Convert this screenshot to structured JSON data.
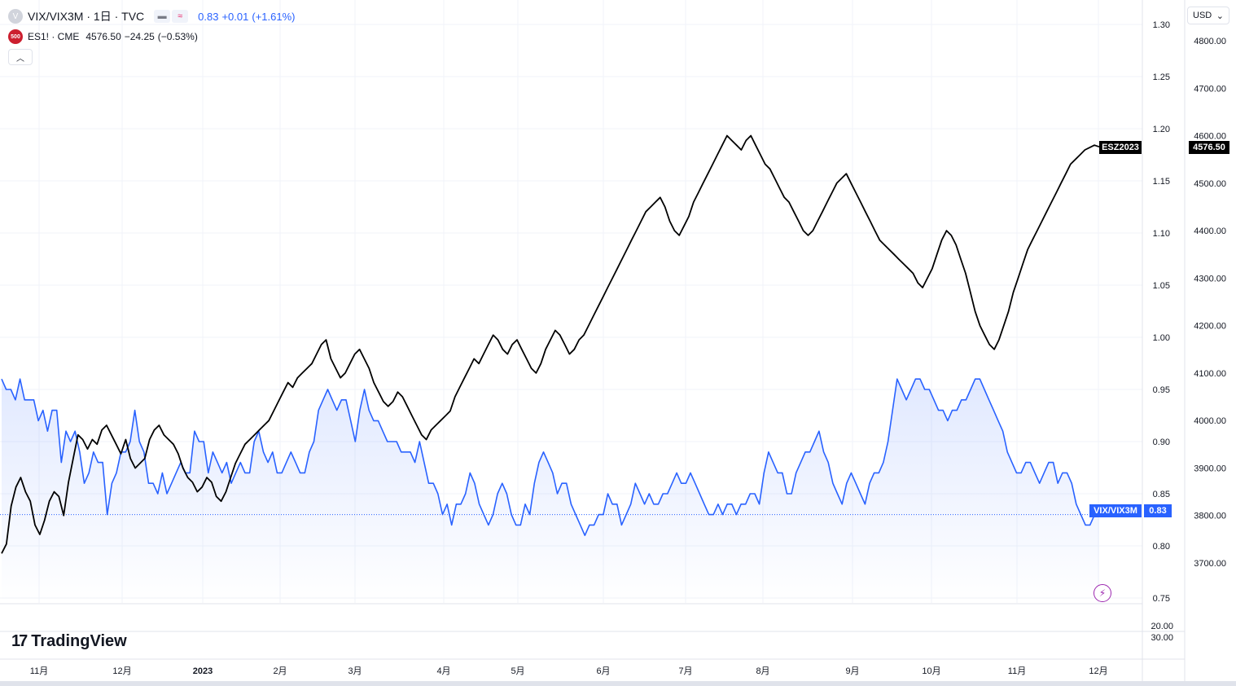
{
  "legend": {
    "main": {
      "badge": "V",
      "title": "VIX/VIX3M · 1日 · TVC",
      "price": "0.83",
      "change": "+0.01",
      "change_pct": "(+1.61%)"
    },
    "compare": {
      "badge": "500",
      "title": "ES1! · CME",
      "price": "4576.50",
      "change": "−24.25",
      "change_pct": "(−0.53%)"
    }
  },
  "currency": "USD",
  "branding": {
    "logo_mark": "17",
    "name": "TradingView"
  },
  "colors": {
    "vix": "#2962ff",
    "es": "#000000",
    "grid": "#f0f3fa"
  },
  "chart_data": {
    "type": "line",
    "x_ticks": [
      "11月",
      "12月",
      "2023",
      "2月",
      "3月",
      "4月",
      "5月",
      "6月",
      "7月",
      "8月",
      "9月",
      "10月",
      "11月",
      "12月"
    ],
    "y_left_ticks": [
      "1.30",
      "1.25",
      "1.20",
      "1.15",
      "1.10",
      "1.05",
      "1.00",
      "0.95",
      "0.90",
      "0.85",
      "0.80",
      "0.75"
    ],
    "y_right_ticks": [
      "4800.00",
      "4700.00",
      "4600.00",
      "4500.00",
      "4400.00",
      "4300.00",
      "4200.00",
      "4100.00",
      "4000.00",
      "3900.00",
      "3800.00",
      "3700.00"
    ],
    "lower_ticks": [
      "20.00",
      "30.00"
    ],
    "ylim_left": [
      0.75,
      1.3
    ],
    "ylim_right": [
      3700,
      4800
    ],
    "series": [
      {
        "name": "VIX/VIX3M",
        "axis": "left",
        "last": "0.83",
        "values": [
          0.96,
          0.95,
          0.95,
          0.94,
          0.96,
          0.94,
          0.94,
          0.94,
          0.92,
          0.93,
          0.91,
          0.93,
          0.93,
          0.88,
          0.91,
          0.9,
          0.91,
          0.89,
          0.86,
          0.87,
          0.89,
          0.88,
          0.88,
          0.83,
          0.86,
          0.87,
          0.89,
          0.89,
          0.9,
          0.93,
          0.9,
          0.89,
          0.86,
          0.86,
          0.85,
          0.87,
          0.85,
          0.86,
          0.87,
          0.88,
          0.87,
          0.87,
          0.91,
          0.9,
          0.9,
          0.87,
          0.89,
          0.88,
          0.87,
          0.88,
          0.86,
          0.87,
          0.88,
          0.87,
          0.87,
          0.9,
          0.91,
          0.89,
          0.88,
          0.89,
          0.87,
          0.87,
          0.88,
          0.89,
          0.88,
          0.87,
          0.87,
          0.89,
          0.9,
          0.93,
          0.94,
          0.95,
          0.94,
          0.93,
          0.94,
          0.94,
          0.92,
          0.9,
          0.93,
          0.95,
          0.93,
          0.92,
          0.92,
          0.91,
          0.9,
          0.9,
          0.9,
          0.89,
          0.89,
          0.89,
          0.88,
          0.9,
          0.88,
          0.86,
          0.86,
          0.85,
          0.83,
          0.84,
          0.82,
          0.84,
          0.84,
          0.85,
          0.87,
          0.86,
          0.84,
          0.83,
          0.82,
          0.83,
          0.85,
          0.86,
          0.85,
          0.83,
          0.82,
          0.82,
          0.84,
          0.83,
          0.86,
          0.88,
          0.89,
          0.88,
          0.87,
          0.85,
          0.86,
          0.86,
          0.84,
          0.83,
          0.82,
          0.81,
          0.82,
          0.82,
          0.83,
          0.83,
          0.85,
          0.84,
          0.84,
          0.82,
          0.83,
          0.84,
          0.86,
          0.85,
          0.84,
          0.85,
          0.84,
          0.84,
          0.85,
          0.85,
          0.86,
          0.87,
          0.86,
          0.86,
          0.87,
          0.86,
          0.85,
          0.84,
          0.83,
          0.83,
          0.84,
          0.83,
          0.84,
          0.84,
          0.83,
          0.84,
          0.84,
          0.85,
          0.85,
          0.84,
          0.87,
          0.89,
          0.88,
          0.87,
          0.87,
          0.85,
          0.85,
          0.87,
          0.88,
          0.89,
          0.89,
          0.9,
          0.91,
          0.89,
          0.88,
          0.86,
          0.85,
          0.84,
          0.86,
          0.87,
          0.86,
          0.85,
          0.84,
          0.86,
          0.87,
          0.87,
          0.88,
          0.9,
          0.93,
          0.96,
          0.95,
          0.94,
          0.95,
          0.96,
          0.96,
          0.95,
          0.95,
          0.94,
          0.93,
          0.93,
          0.92,
          0.93,
          0.93,
          0.94,
          0.94,
          0.95,
          0.96,
          0.96,
          0.95,
          0.94,
          0.93,
          0.92,
          0.91,
          0.89,
          0.88,
          0.87,
          0.87,
          0.88,
          0.88,
          0.87,
          0.86,
          0.87,
          0.88,
          0.88,
          0.86,
          0.87,
          0.87,
          0.86,
          0.84,
          0.83,
          0.82,
          0.82,
          0.83,
          0.83
        ]
      },
      {
        "name": "ESZ2023",
        "axis": "right",
        "last": "4576.50",
        "values": [
          3720,
          3740,
          3820,
          3860,
          3880,
          3850,
          3830,
          3780,
          3760,
          3790,
          3830,
          3850,
          3840,
          3800,
          3870,
          3920,
          3970,
          3960,
          3940,
          3960,
          3950,
          3980,
          3990,
          3970,
          3950,
          3930,
          3960,
          3920,
          3900,
          3910,
          3920,
          3960,
          3980,
          3990,
          3970,
          3960,
          3950,
          3930,
          3900,
          3880,
          3870,
          3850,
          3860,
          3880,
          3870,
          3840,
          3830,
          3850,
          3880,
          3910,
          3930,
          3950,
          3960,
          3970,
          3980,
          3990,
          4000,
          4020,
          4040,
          4060,
          4080,
          4070,
          4090,
          4100,
          4110,
          4120,
          4140,
          4160,
          4170,
          4130,
          4110,
          4090,
          4100,
          4120,
          4140,
          4150,
          4130,
          4110,
          4080,
          4060,
          4040,
          4030,
          4040,
          4060,
          4050,
          4030,
          4010,
          3990,
          3970,
          3960,
          3980,
          3990,
          4000,
          4010,
          4020,
          4050,
          4070,
          4090,
          4110,
          4130,
          4120,
          4140,
          4160,
          4180,
          4170,
          4150,
          4140,
          4160,
          4170,
          4150,
          4130,
          4110,
          4100,
          4120,
          4150,
          4170,
          4190,
          4180,
          4160,
          4140,
          4150,
          4170,
          4180,
          4200,
          4220,
          4240,
          4260,
          4280,
          4300,
          4320,
          4340,
          4360,
          4380,
          4400,
          4420,
          4440,
          4450,
          4460,
          4470,
          4450,
          4420,
          4400,
          4390,
          4410,
          4430,
          4460,
          4480,
          4500,
          4520,
          4540,
          4560,
          4580,
          4600,
          4590,
          4580,
          4570,
          4590,
          4600,
          4580,
          4560,
          4540,
          4530,
          4510,
          4490,
          4470,
          4460,
          4440,
          4420,
          4400,
          4390,
          4400,
          4420,
          4440,
          4460,
          4480,
          4500,
          4510,
          4520,
          4500,
          4480,
          4460,
          4440,
          4420,
          4400,
          4380,
          4370,
          4360,
          4350,
          4340,
          4330,
          4320,
          4310,
          4290,
          4280,
          4300,
          4320,
          4350,
          4380,
          4400,
          4390,
          4370,
          4340,
          4310,
          4270,
          4230,
          4200,
          4180,
          4160,
          4150,
          4170,
          4200,
          4230,
          4270,
          4300,
          4330,
          4360,
          4380,
          4400,
          4420,
          4440,
          4460,
          4480,
          4500,
          4520,
          4540,
          4550,
          4560,
          4570,
          4575,
          4580,
          4576.5
        ]
      }
    ],
    "grid": true,
    "legend_position": "top-left"
  }
}
